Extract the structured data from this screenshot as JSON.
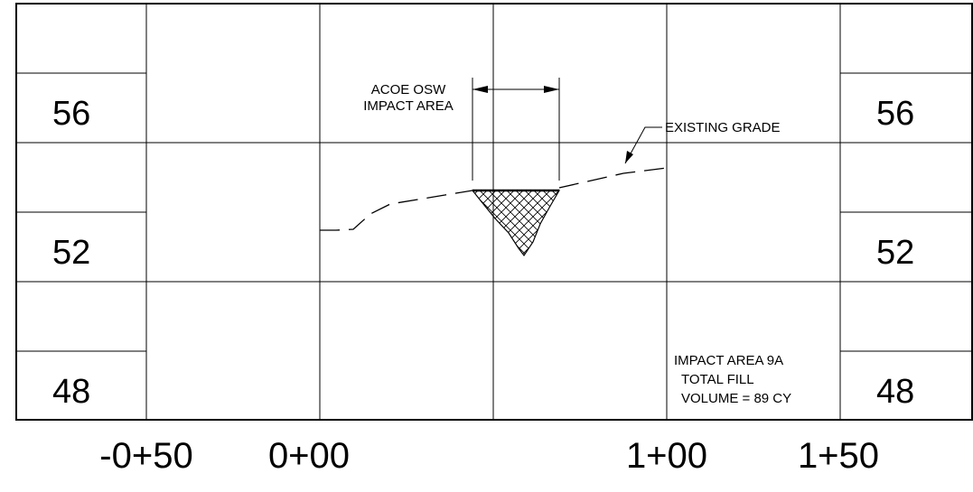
{
  "elevation_labels": [
    "56",
    "52",
    "48"
  ],
  "station_labels": [
    "-0+50",
    "0+00",
    "1+00",
    "1+50"
  ],
  "annotations": {
    "osw_line1": "ACOE OSW",
    "osw_line2": "IMPACT AREA",
    "existing_grade": "EXISTING GRADE",
    "impact_line1": "IMPACT AREA 9A",
    "impact_line2": "TOTAL FILL",
    "impact_line3": "VOLUME = 89 CY"
  },
  "colors": {
    "ink": "#000000",
    "background": "#ffffff"
  }
}
